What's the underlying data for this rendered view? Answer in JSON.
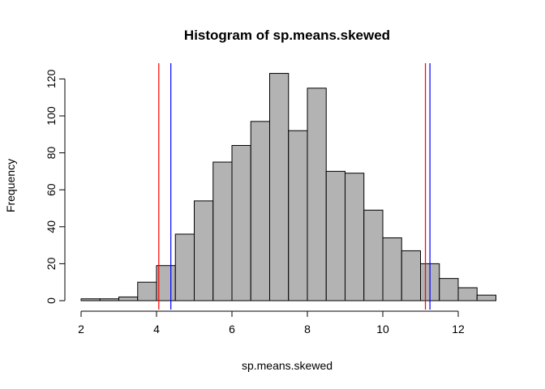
{
  "chart_data": {
    "type": "bar",
    "title": "Histogram of sp.means.skewed",
    "xlabel": "sp.means.skewed",
    "ylabel": "Frequency",
    "xlim": [
      2,
      13
    ],
    "ylim": [
      0,
      123
    ],
    "bin_width": 0.5,
    "bins": [
      {
        "start": 2.0,
        "end": 2.5,
        "count": 1
      },
      {
        "start": 2.5,
        "end": 3.0,
        "count": 1
      },
      {
        "start": 3.0,
        "end": 3.5,
        "count": 2
      },
      {
        "start": 3.5,
        "end": 4.0,
        "count": 10
      },
      {
        "start": 4.0,
        "end": 4.5,
        "count": 19
      },
      {
        "start": 4.5,
        "end": 5.0,
        "count": 36
      },
      {
        "start": 5.0,
        "end": 5.5,
        "count": 54
      },
      {
        "start": 5.5,
        "end": 6.0,
        "count": 75
      },
      {
        "start": 6.0,
        "end": 6.5,
        "count": 84
      },
      {
        "start": 6.5,
        "end": 7.0,
        "count": 97
      },
      {
        "start": 7.0,
        "end": 7.5,
        "count": 123
      },
      {
        "start": 7.5,
        "end": 8.0,
        "count": 92
      },
      {
        "start": 8.0,
        "end": 8.5,
        "count": 115
      },
      {
        "start": 8.5,
        "end": 9.0,
        "count": 70
      },
      {
        "start": 9.0,
        "end": 9.5,
        "count": 69
      },
      {
        "start": 9.5,
        "end": 10.0,
        "count": 49
      },
      {
        "start": 10.0,
        "end": 10.5,
        "count": 34
      },
      {
        "start": 10.5,
        "end": 11.0,
        "count": 27
      },
      {
        "start": 11.0,
        "end": 11.5,
        "count": 20
      },
      {
        "start": 11.5,
        "end": 12.0,
        "count": 12
      },
      {
        "start": 12.0,
        "end": 12.5,
        "count": 7
      },
      {
        "start": 12.5,
        "end": 13.0,
        "count": 3
      }
    ],
    "x_ticks": [
      2,
      4,
      6,
      8,
      10,
      12
    ],
    "y_ticks": [
      0,
      20,
      40,
      60,
      80,
      100,
      120
    ],
    "vertical_lines": [
      {
        "x": 4.06,
        "color": "#ff0000"
      },
      {
        "x": 4.38,
        "color": "#0000ff"
      },
      {
        "x": 11.13,
        "color": "#ff0000"
      },
      {
        "x": 11.25,
        "color": "#0000ff"
      }
    ],
    "bar_fill": "#b3b3b3",
    "grid": false,
    "legend": "none"
  }
}
